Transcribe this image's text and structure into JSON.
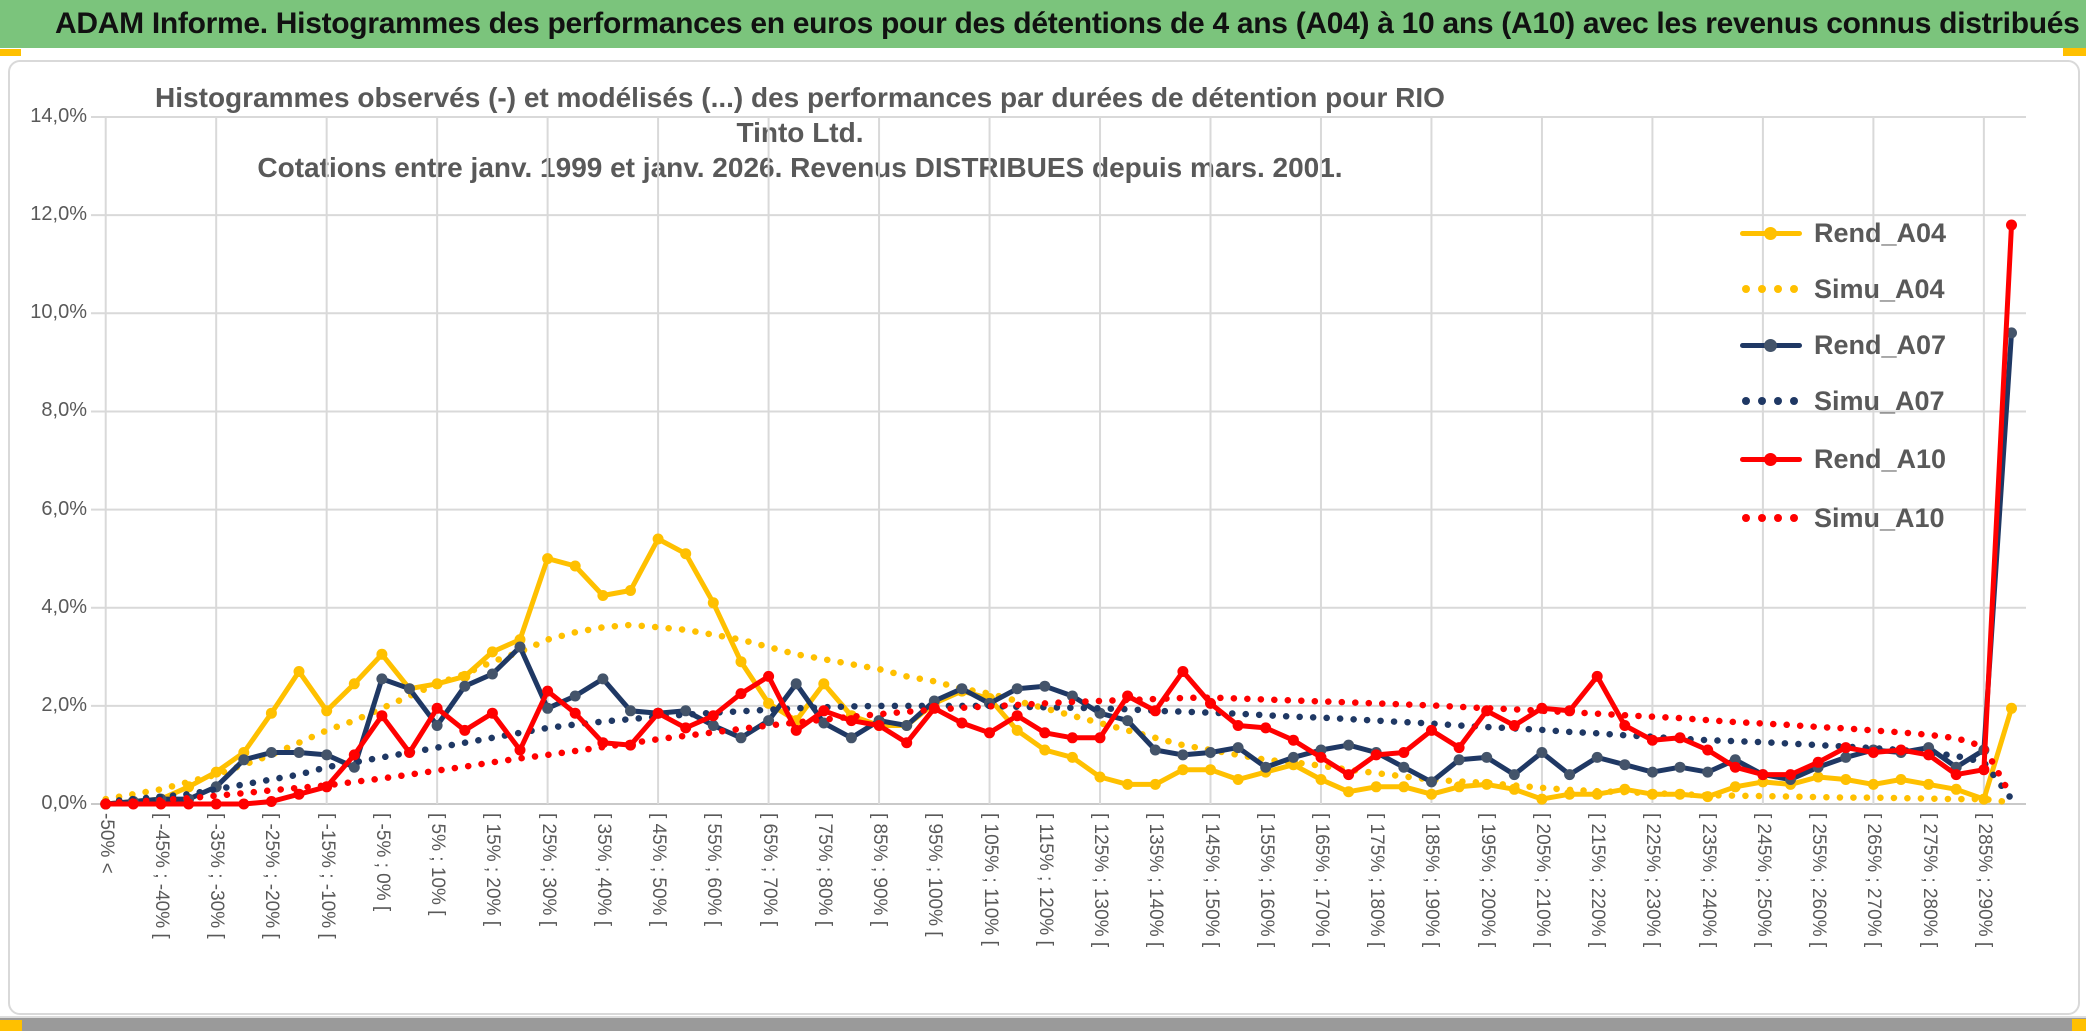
{
  "window": {
    "header_title": "ADAM Informe. Histogrammes des performances en euros pour des détentions de 4 ans (A04) à 10 ans (A10) avec les revenus connus distribués"
  },
  "chart": {
    "title_line1": "Histogrammes observés (-) et modélisés (...) des performances par durées de détention pour RIO Tinto Ltd.",
    "title_line2": "Cotations entre janv. 1999 et janv. 2026. Revenus DISTRIBUES depuis mars. 2001."
  },
  "colors": {
    "header_green": "#7BC47C",
    "accent_yellow": "#FFC000",
    "text_gray": "#595959",
    "gridline_gray": "#D9D9D9",
    "bottom_bar_gray": "#9A9A9A",
    "series_gold": "#FFC000",
    "series_navy": "#1F3864",
    "series_navy_marker": "#44546A",
    "series_red": "#FF0000"
  },
  "chart_data": {
    "type": "line",
    "n_bins": 70,
    "x_tick_every": 2,
    "x_tick_labels": [
      "-50% <",
      "[ -45% ; -40% [",
      "[ -35% ; -30% [",
      "[ -25% ; -20% [",
      "[ -15% ; -10% [",
      "[ -5% ; 0% [",
      "[ 5% ; 10% [",
      "[ 15% ; 20% [",
      "[ 25% ; 30% [",
      "[ 35% ; 40% [",
      "[ 45% ; 50% [",
      "[ 55% ; 60% [",
      "[ 65% ; 70% [",
      "[ 75% ; 80% [",
      "[ 85% ; 90% [",
      "[ 95% ; 100% [",
      "[ 105% ; 110% [",
      "[ 115% ; 120% [",
      "[ 125% ; 130% [",
      "[ 135% ; 140% [",
      "[ 145% ; 150% [",
      "[ 155% ; 160% [",
      "[ 165% ; 170% [",
      "[ 175% ; 180% [",
      "[ 185% ; 190% [",
      "[ 195% ; 200% [",
      "[ 205% ; 210% [",
      "[ 215% ; 220% [",
      "[ 225% ; 230% [",
      "[ 235% ; 240% [",
      "[ 245% ; 250% [",
      "[ 255% ; 260% [",
      "[ 265% ; 270% [",
      "[ 275% ; 280% [",
      "[ 285% ; 290% ["
    ],
    "y_tick_labels": [
      "0,0%",
      "2,0%",
      "4,0%",
      "6,0%",
      "8,0%",
      "10,0%",
      "12,0%",
      "14,0%"
    ],
    "ylim": [
      0,
      14
    ],
    "ytick_step": 2,
    "grid": true,
    "legend_position": "right-inside",
    "series": [
      {
        "name": "Rend_A04",
        "style": "solid",
        "color": "#FFC000",
        "marker_color": "#FFC000",
        "values": [
          0,
          0.05,
          0.1,
          0.35,
          0.65,
          1.05,
          1.85,
          2.7,
          1.9,
          2.45,
          3.05,
          2.35,
          2.45,
          2.6,
          3.1,
          3.35,
          5.0,
          4.85,
          4.25,
          4.35,
          5.4,
          5.1,
          4.1,
          2.9,
          2.05,
          1.7,
          2.45,
          1.8,
          1.6,
          1.6,
          2.05,
          2.3,
          2.15,
          1.5,
          1.1,
          0.95,
          0.55,
          0.4,
          0.4,
          0.7,
          0.7,
          0.5,
          0.65,
          0.8,
          0.5,
          0.25,
          0.35,
          0.35,
          0.2,
          0.35,
          0.4,
          0.3,
          0.1,
          0.2,
          0.2,
          0.3,
          0.2,
          0.2,
          0.15,
          0.35,
          0.45,
          0.4,
          0.55,
          0.5,
          0.4,
          0.5,
          0.4,
          0.3,
          0.1,
          1.95
        ]
      },
      {
        "name": "Simu_A04",
        "style": "dotted",
        "color": "#FFC000",
        "values": [
          0.1,
          0.2,
          0.3,
          0.45,
          0.6,
          0.8,
          1.0,
          1.25,
          1.5,
          1.7,
          1.95,
          2.2,
          2.45,
          2.65,
          2.9,
          3.1,
          3.35,
          3.5,
          3.6,
          3.65,
          3.6,
          3.55,
          3.45,
          3.35,
          3.2,
          3.05,
          2.95,
          2.85,
          2.75,
          2.6,
          2.5,
          2.35,
          2.25,
          2.1,
          1.95,
          1.8,
          1.65,
          1.5,
          1.35,
          1.2,
          1.1,
          1.0,
          0.9,
          0.85,
          0.78,
          0.7,
          0.63,
          0.56,
          0.5,
          0.46,
          0.43,
          0.38,
          0.33,
          0.29,
          0.26,
          0.24,
          0.22,
          0.2,
          0.18,
          0.17,
          0.16,
          0.15,
          0.14,
          0.13,
          0.13,
          0.12,
          0.11,
          0.1,
          0.1,
          0.03
        ]
      },
      {
        "name": "Rend_A07",
        "style": "solid",
        "color": "#1F3864",
        "marker_color": "#44546A",
        "values": [
          0,
          0.05,
          0.1,
          0.1,
          0.35,
          0.9,
          1.05,
          1.05,
          1.0,
          0.75,
          2.55,
          2.35,
          1.6,
          2.4,
          2.65,
          3.2,
          1.95,
          2.2,
          2.55,
          1.9,
          1.85,
          1.9,
          1.6,
          1.35,
          1.7,
          2.45,
          1.65,
          1.35,
          1.7,
          1.6,
          2.1,
          2.35,
          2.05,
          2.35,
          2.4,
          2.2,
          1.85,
          1.7,
          1.1,
          1.0,
          1.05,
          1.15,
          0.75,
          0.95,
          1.1,
          1.2,
          1.05,
          0.75,
          0.45,
          0.9,
          0.95,
          0.6,
          1.05,
          0.6,
          0.95,
          0.8,
          0.65,
          0.75,
          0.65,
          0.9,
          0.6,
          0.5,
          0.75,
          0.95,
          1.1,
          1.05,
          1.15,
          0.75,
          1.1,
          9.6
        ]
      },
      {
        "name": "Simu_A07",
        "style": "dotted",
        "color": "#1F3864",
        "values": [
          0.05,
          0.1,
          0.15,
          0.2,
          0.3,
          0.4,
          0.5,
          0.6,
          0.75,
          0.85,
          0.95,
          1.05,
          1.15,
          1.25,
          1.35,
          1.45,
          1.55,
          1.62,
          1.68,
          1.73,
          1.78,
          1.82,
          1.86,
          1.89,
          1.92,
          1.95,
          1.97,
          1.99,
          2.0,
          2.0,
          2.0,
          2.0,
          2.0,
          1.98,
          1.97,
          1.96,
          1.95,
          1.93,
          1.9,
          1.88,
          1.86,
          1.84,
          1.81,
          1.78,
          1.76,
          1.73,
          1.7,
          1.67,
          1.64,
          1.6,
          1.57,
          1.54,
          1.51,
          1.47,
          1.44,
          1.4,
          1.37,
          1.33,
          1.3,
          1.28,
          1.26,
          1.23,
          1.2,
          1.17,
          1.14,
          1.1,
          1.05,
          0.98,
          0.85,
          0.1
        ]
      },
      {
        "name": "Rend_A10",
        "style": "solid",
        "color": "#FF0000",
        "marker_color": "#FF0000",
        "values": [
          0,
          0,
          0,
          0,
          0,
          0,
          0.05,
          0.2,
          0.35,
          1.0,
          1.8,
          1.05,
          1.95,
          1.5,
          1.85,
          1.1,
          2.3,
          1.85,
          1.25,
          1.2,
          1.85,
          1.55,
          1.8,
          2.25,
          2.6,
          1.5,
          1.9,
          1.7,
          1.6,
          1.25,
          1.95,
          1.65,
          1.45,
          1.8,
          1.45,
          1.35,
          1.35,
          2.2,
          1.9,
          2.7,
          2.05,
          1.6,
          1.55,
          1.3,
          0.95,
          0.6,
          1.0,
          1.05,
          1.5,
          1.15,
          1.9,
          1.6,
          1.95,
          1.9,
          2.6,
          1.6,
          1.3,
          1.35,
          1.1,
          0.75,
          0.6,
          0.6,
          0.85,
          1.15,
          1.05,
          1.1,
          1.0,
          0.6,
          0.7,
          11.8
        ]
      },
      {
        "name": "Simu_A10",
        "style": "dotted",
        "color": "#FF0000",
        "values": [
          0.02,
          0.05,
          0.08,
          0.12,
          0.17,
          0.22,
          0.28,
          0.33,
          0.38,
          0.45,
          0.52,
          0.6,
          0.68,
          0.76,
          0.85,
          0.93,
          1.0,
          1.08,
          1.16,
          1.24,
          1.32,
          1.39,
          1.46,
          1.53,
          1.6,
          1.66,
          1.72,
          1.78,
          1.83,
          1.88,
          1.92,
          1.96,
          1.99,
          2.02,
          2.05,
          2.08,
          2.1,
          2.12,
          2.14,
          2.16,
          2.17,
          2.15,
          2.13,
          2.11,
          2.09,
          2.07,
          2.05,
          2.03,
          2.01,
          1.98,
          1.95,
          1.93,
          1.9,
          1.87,
          1.84,
          1.81,
          1.78,
          1.75,
          1.71,
          1.67,
          1.64,
          1.61,
          1.57,
          1.54,
          1.5,
          1.46,
          1.41,
          1.34,
          1.17,
          0.15
        ]
      }
    ]
  }
}
